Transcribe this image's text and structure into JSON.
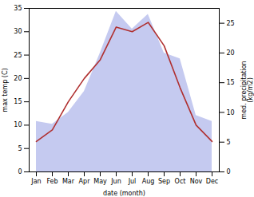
{
  "chart_data": {
    "type": "line",
    "categories": [
      "Jan",
      "Feb",
      "Mar",
      "Apr",
      "May",
      "Jun",
      "Jul",
      "Aug",
      "Sep",
      "Oct",
      "Nov",
      "Dec"
    ],
    "series": [
      {
        "type": "area",
        "axis": "y2",
        "color": "#c5caf0",
        "values": [
          8.5,
          8.0,
          10.0,
          13.5,
          20.0,
          27.0,
          24.0,
          26.5,
          20.0,
          19.0,
          9.5,
          8.5
        ]
      },
      {
        "type": "line",
        "axis": "y",
        "color": "#b03030",
        "values": [
          6.5,
          9.0,
          15.0,
          20.0,
          24.0,
          31.0,
          30.0,
          32.0,
          27.0,
          18.0,
          10.0,
          6.5
        ]
      }
    ],
    "xlabel": "date (month)",
    "ylabel": "max temp (C)",
    "y2label": "med. precipitation\n(kg/m2)",
    "ylim": [
      0,
      35
    ],
    "yticks": [
      0,
      5,
      10,
      15,
      20,
      25,
      30,
      35
    ],
    "y2lim": [
      0,
      27.5
    ],
    "y2ticks": [
      0,
      5,
      10,
      15,
      20,
      25
    ],
    "grid": false
  }
}
